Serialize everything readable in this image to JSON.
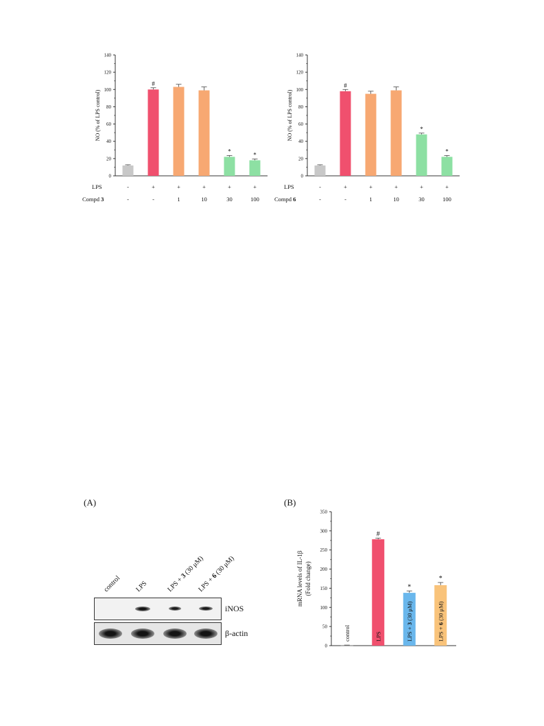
{
  "chart_data": [
    {
      "type": "bar",
      "ylabel": "NO (% of LPS control)",
      "ylim": [
        0,
        140
      ],
      "yticks": [
        0,
        20,
        40,
        60,
        80,
        100,
        120,
        140
      ],
      "values": [
        12,
        100,
        103,
        99,
        22,
        18
      ],
      "errors": [
        0.8,
        2,
        3,
        4,
        1.5,
        1.5
      ],
      "marks": [
        "",
        "#",
        "",
        "",
        "*",
        "*"
      ],
      "colors": [
        "#c8c8c8",
        "#f0506e",
        "#f7a872",
        "#f7a872",
        "#8de0a3",
        "#8de0a3"
      ],
      "rows": [
        {
          "label": "LPS",
          "bold": "",
          "cells": [
            "-",
            "+",
            "+",
            "+",
            "+",
            "+"
          ]
        },
        {
          "label": "Compd ",
          "bold": "3",
          "cells": [
            "-",
            "-",
            "1",
            "10",
            "30",
            "100"
          ]
        }
      ]
    },
    {
      "type": "bar",
      "ylabel": "NO (% of LPS control)",
      "ylim": [
        0,
        140
      ],
      "yticks": [
        0,
        20,
        40,
        60,
        80,
        100,
        120,
        140
      ],
      "values": [
        12,
        98,
        95,
        99,
        48,
        22
      ],
      "errors": [
        0.8,
        2,
        3,
        4,
        1.5,
        1.5
      ],
      "marks": [
        "",
        "#",
        "",
        "",
        "*",
        "*"
      ],
      "colors": [
        "#c8c8c8",
        "#f0506e",
        "#f7a872",
        "#f7a872",
        "#8de0a3",
        "#8de0a3"
      ],
      "rows": [
        {
          "label": "LPS",
          "bold": "",
          "cells": [
            "-",
            "+",
            "+",
            "+",
            "+",
            "+"
          ]
        },
        {
          "label": "Compd ",
          "bold": "6",
          "cells": [
            "-",
            "-",
            "1",
            "10",
            "30",
            "100"
          ]
        }
      ]
    },
    {
      "type": "bar",
      "panel": "(B)",
      "ylabel_lines": [
        "mRNA levels of IL-1β",
        "(Fold change)"
      ],
      "ylim": [
        0,
        350
      ],
      "yticks": [
        0,
        50,
        100,
        150,
        200,
        250,
        300,
        350
      ],
      "values": [
        1,
        278,
        138,
        158
      ],
      "errors": [
        0.5,
        3,
        5,
        7
      ],
      "marks": [
        "",
        "#",
        "*",
        "*"
      ],
      "colors": [
        "#ffffff",
        "#f0506e",
        "#6ab7ec",
        "#f9c37a"
      ],
      "bar_labels": [
        {
          "pre": "control",
          "bold": "",
          "post": ""
        },
        {
          "pre": "LPS",
          "bold": "",
          "post": ""
        },
        {
          "pre": "LPS + ",
          "bold": "3",
          "post": " (30 μM)"
        },
        {
          "pre": "LPS + ",
          "bold": "6",
          "post": " (30 μM)"
        }
      ]
    }
  ],
  "western_blot": {
    "panel": "(A)",
    "lanes": [
      {
        "pre": "control",
        "bold": "",
        "post": ""
      },
      {
        "pre": "LPS",
        "bold": "",
        "post": ""
      },
      {
        "pre": "LPS + ",
        "bold": "3",
        "post": " (30 μM)"
      },
      {
        "pre": "LPS + ",
        "bold": "6",
        "post": " (30 μM)"
      }
    ],
    "rows": [
      {
        "label": "iNOS",
        "band_intensity": [
          0,
          1.0,
          0.6,
          0.7
        ]
      },
      {
        "label": "β-actin",
        "band_intensity": [
          1.0,
          1.0,
          1.0,
          1.0
        ]
      }
    ]
  }
}
